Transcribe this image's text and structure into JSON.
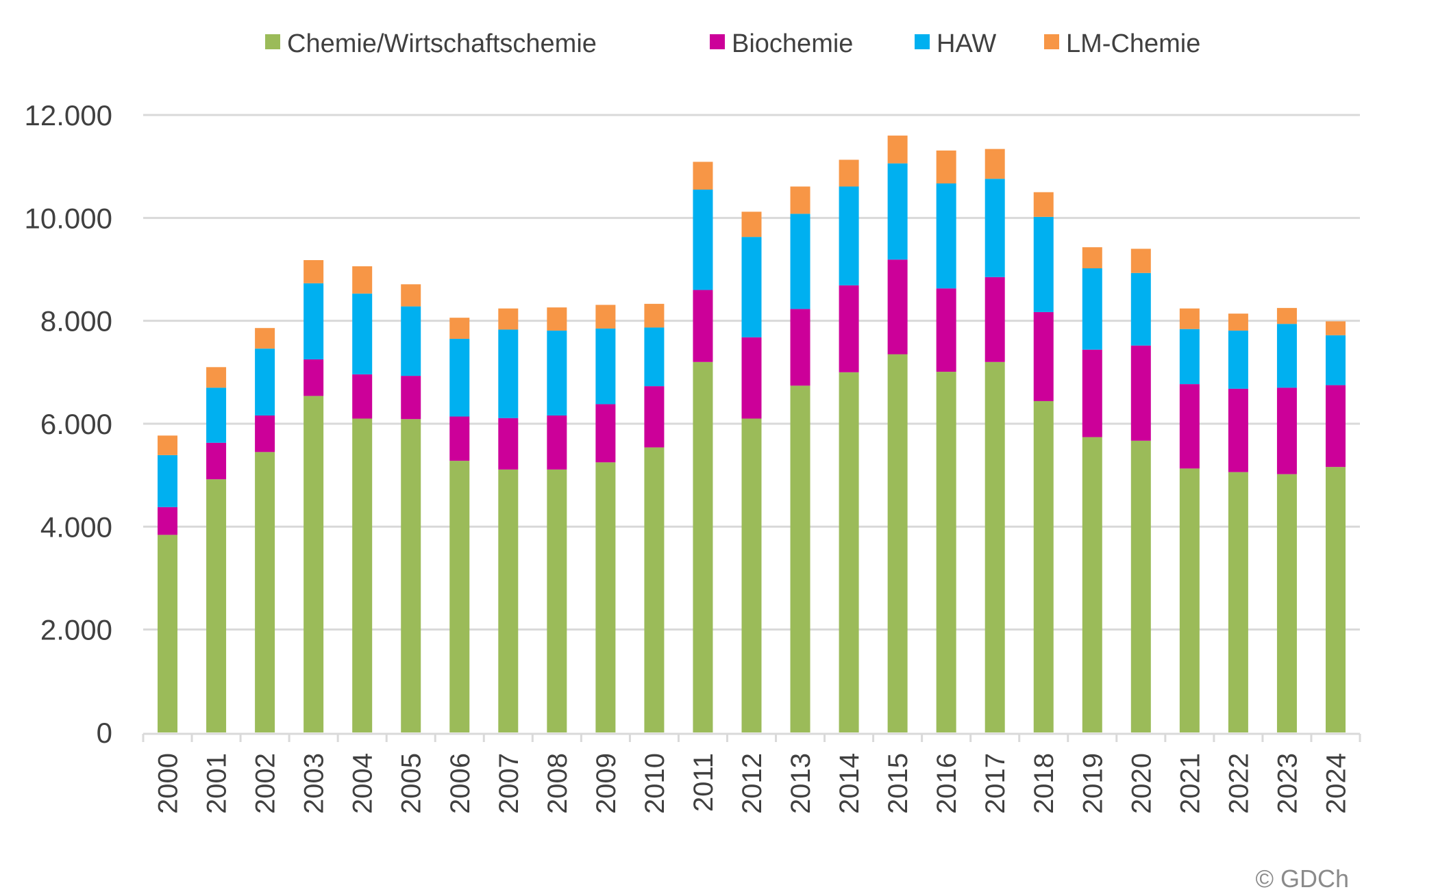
{
  "chart_data": {
    "type": "bar",
    "stacked": true,
    "title": "",
    "xlabel": "",
    "ylabel": "",
    "ylim": [
      0,
      12000
    ],
    "yticks": [
      0,
      2000,
      4000,
      6000,
      8000,
      10000,
      12000
    ],
    "ytick_labels": [
      "0",
      "2.000",
      "4.000",
      "6.000",
      "8.000",
      "10.000",
      "12.000"
    ],
    "grid": true,
    "legend_position": "top",
    "categories": [
      "2000",
      "2001",
      "2002",
      "2003",
      "2004",
      "2005",
      "2006",
      "2007",
      "2008",
      "2009",
      "2010",
      "2011",
      "2012",
      "2013",
      "2014",
      "2015",
      "2016",
      "2017",
      "2018",
      "2019",
      "2020",
      "2021",
      "2022",
      "2023",
      "2024"
    ],
    "series": [
      {
        "name": "Chemie/Wirtschaftschemie",
        "color": "#9bbb59",
        "values": [
          3840,
          4920,
          5450,
          6540,
          6100,
          6090,
          5280,
          5110,
          5110,
          5250,
          5540,
          7200,
          6100,
          6740,
          7000,
          7350,
          7010,
          7200,
          6440,
          5740,
          5670,
          5130,
          5060,
          5020,
          5160
        ]
      },
      {
        "name": "Biochemie",
        "color": "#cc0099",
        "values": [
          540,
          710,
          710,
          710,
          860,
          840,
          860,
          1000,
          1050,
          1130,
          1190,
          1400,
          1580,
          1490,
          1690,
          1840,
          1620,
          1650,
          1730,
          1700,
          1850,
          1640,
          1620,
          1680,
          1590
        ]
      },
      {
        "name": "HAW",
        "color": "#00b0f0",
        "values": [
          1010,
          1070,
          1300,
          1480,
          1570,
          1350,
          1510,
          1720,
          1650,
          1470,
          1140,
          1950,
          1950,
          1850,
          1920,
          1870,
          2040,
          1910,
          1850,
          1580,
          1410,
          1070,
          1130,
          1240,
          970
        ]
      },
      {
        "name": "LM-Chemie",
        "color": "#f79646",
        "values": [
          380,
          400,
          400,
          450,
          530,
          430,
          410,
          410,
          450,
          460,
          460,
          540,
          490,
          530,
          520,
          540,
          640,
          580,
          480,
          410,
          470,
          400,
          330,
          310,
          270
        ]
      }
    ],
    "copyright": "© GDCh"
  }
}
